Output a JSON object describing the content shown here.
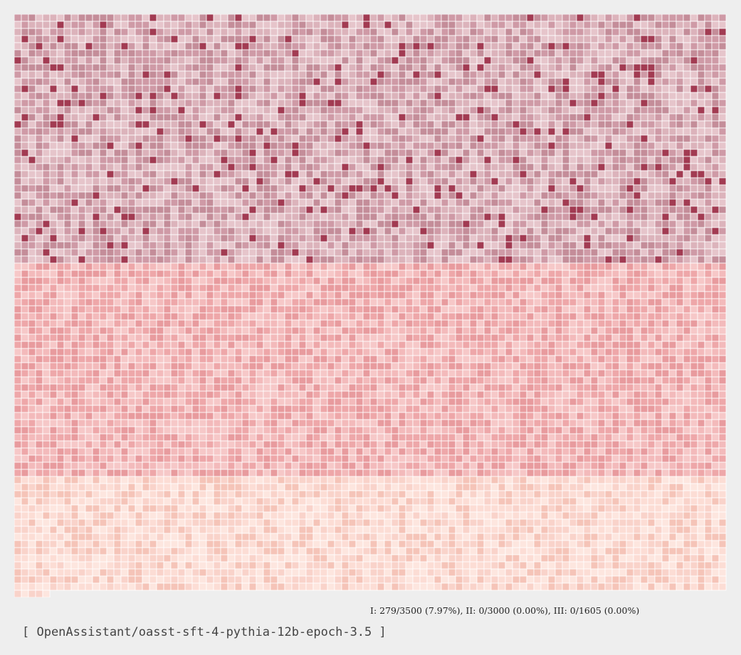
{
  "chart_data": {
    "type": "heatmap",
    "columns": 100,
    "groups": [
      {
        "name": "I",
        "total": 3500,
        "count": 279,
        "percent": "7.97%"
      },
      {
        "name": "II",
        "total": 3000,
        "count": 0,
        "percent": "0.00%"
      },
      {
        "name": "III",
        "total": 1605,
        "count": 0,
        "percent": "0.00%"
      }
    ],
    "colors": {
      "I": [
        "#cf9aa6",
        "#dcb3bb",
        "#c48d99",
        "#e6c5cb"
      ],
      "I_highlight": "#a23b52",
      "II": [
        "#eea7a9",
        "#f3babb",
        "#e89b9e",
        "#f6c8c8"
      ],
      "III": [
        "#f9d3ca",
        "#fcddd5",
        "#f5c4b8",
        "#fde6df"
      ],
      "gridline": "#ffffff",
      "background": "#eeeeee"
    }
  },
  "stats_text": "I: 279/3500 (7.97%), II: 0/3000 (0.00%), III: 0/1605 (0.00%)",
  "model_label": "[ OpenAssistant/oasst-sft-4-pythia-12b-epoch-3.5 ]"
}
